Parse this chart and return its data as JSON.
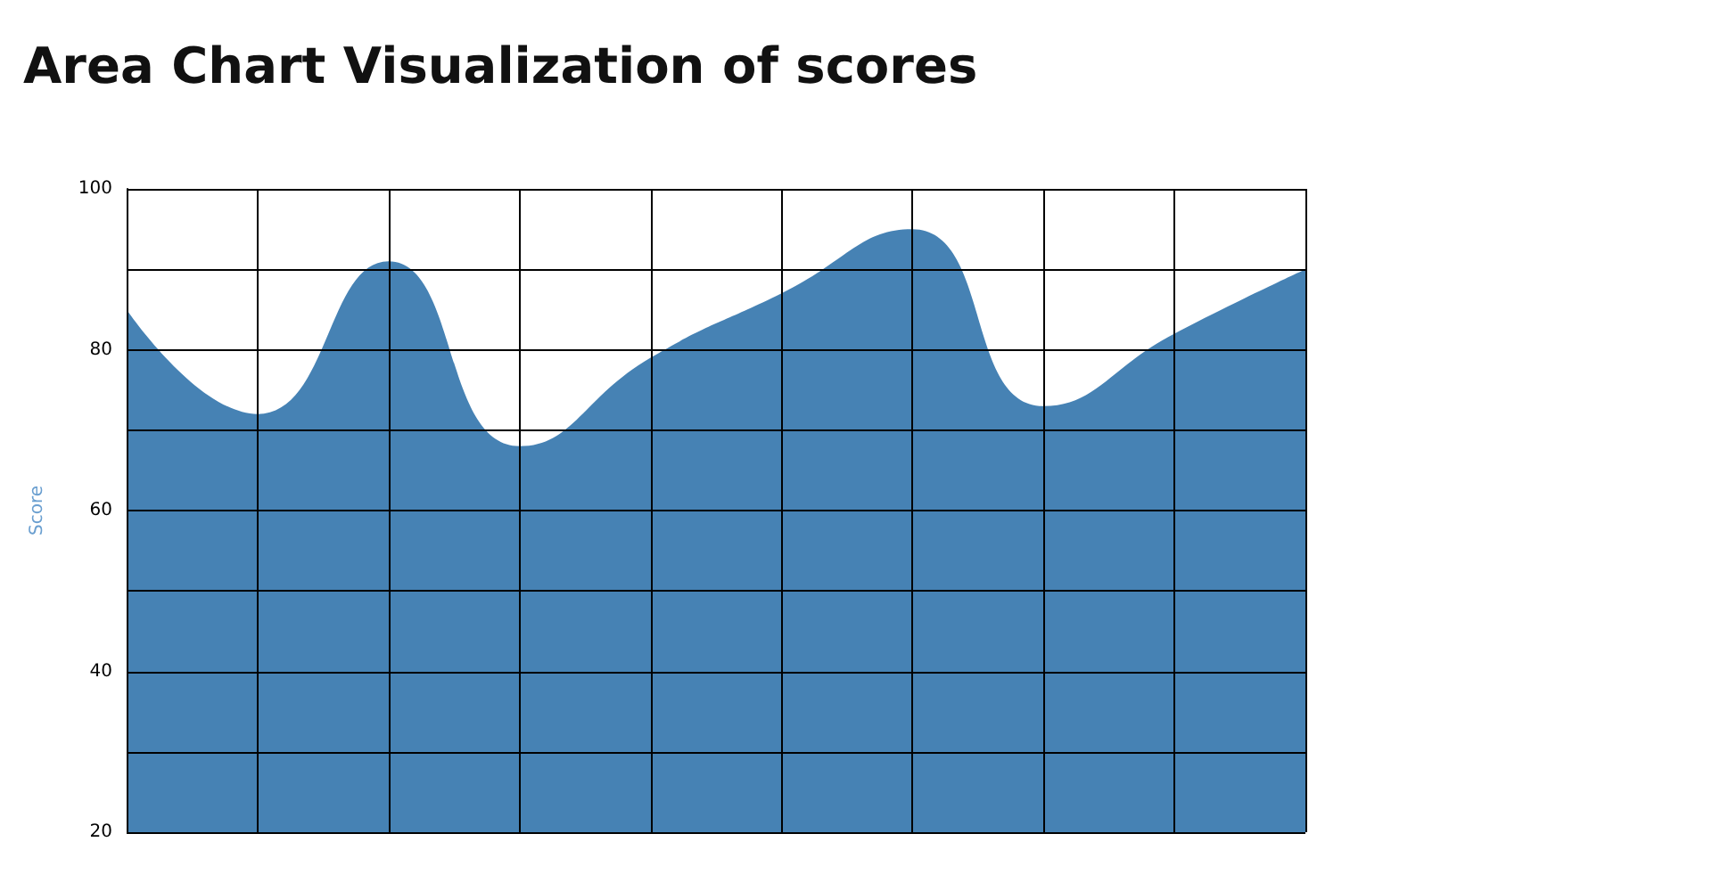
{
  "chart_data": {
    "type": "area",
    "title": "Area Chart Visualization of scores",
    "ylabel": "Score",
    "categories": [
      null,
      null,
      null,
      null,
      null,
      null,
      null,
      null,
      null,
      null
    ],
    "series": [
      {
        "color": "#4682b4",
        "values": [
          85,
          72,
          91,
          68,
          79,
          87,
          95,
          73,
          82,
          90
        ]
      }
    ],
    "ylim": [
      20,
      100
    ],
    "yticks": [
      20,
      {
        "value": 30,
        "label": null
      },
      40,
      {
        "value": 50,
        "label": null
      },
      60,
      {
        "value": 70,
        "label": null
      },
      80,
      {
        "value": 90,
        "label": null
      },
      100
    ],
    "grid": true,
    "marker": "none"
  }
}
